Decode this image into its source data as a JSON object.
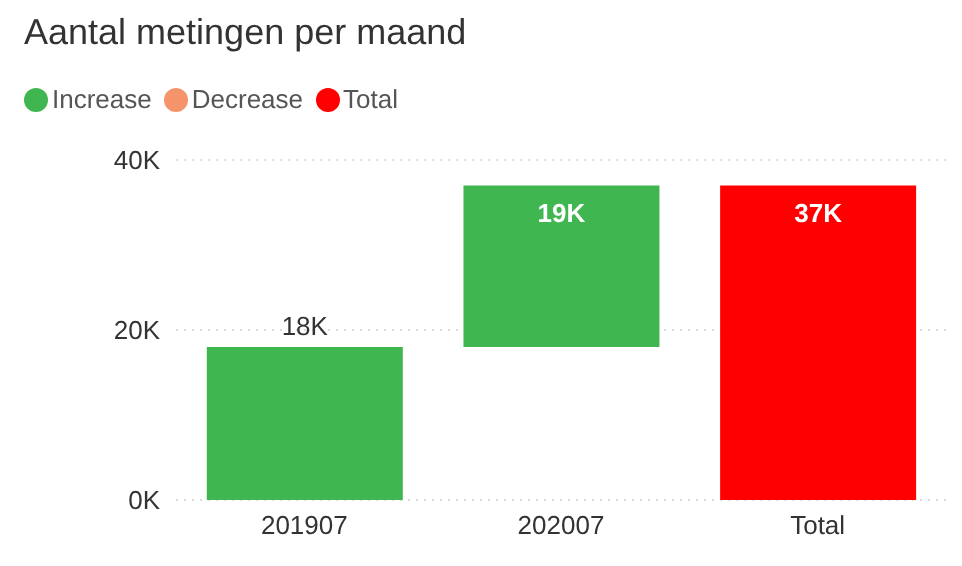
{
  "chart_data": {
    "type": "bar",
    "title": "Aantal metingen per maand",
    "legend": "top left",
    "grid": "y",
    "categories": [
      "201907",
      "202007",
      "Total"
    ],
    "series": [
      {
        "name": "Increase",
        "color": "#3fb650",
        "values": [
          18,
          19,
          null
        ],
        "base": [
          0,
          18,
          null
        ]
      },
      {
        "name": "Decrease",
        "color": "#f5946a",
        "values": [
          null,
          null,
          null
        ]
      },
      {
        "name": "Total",
        "color": "#ff0000",
        "values": [
          null,
          null,
          37
        ],
        "base": [
          null,
          null,
          0
        ]
      }
    ],
    "value_labels": [
      "18K",
      "19K",
      "37K"
    ],
    "ylim": [
      0,
      40
    ],
    "yticks": [
      {
        "value": 0,
        "label": "0K"
      },
      {
        "value": 20,
        "label": "20K"
      },
      {
        "value": 40,
        "label": "40K"
      }
    ]
  }
}
